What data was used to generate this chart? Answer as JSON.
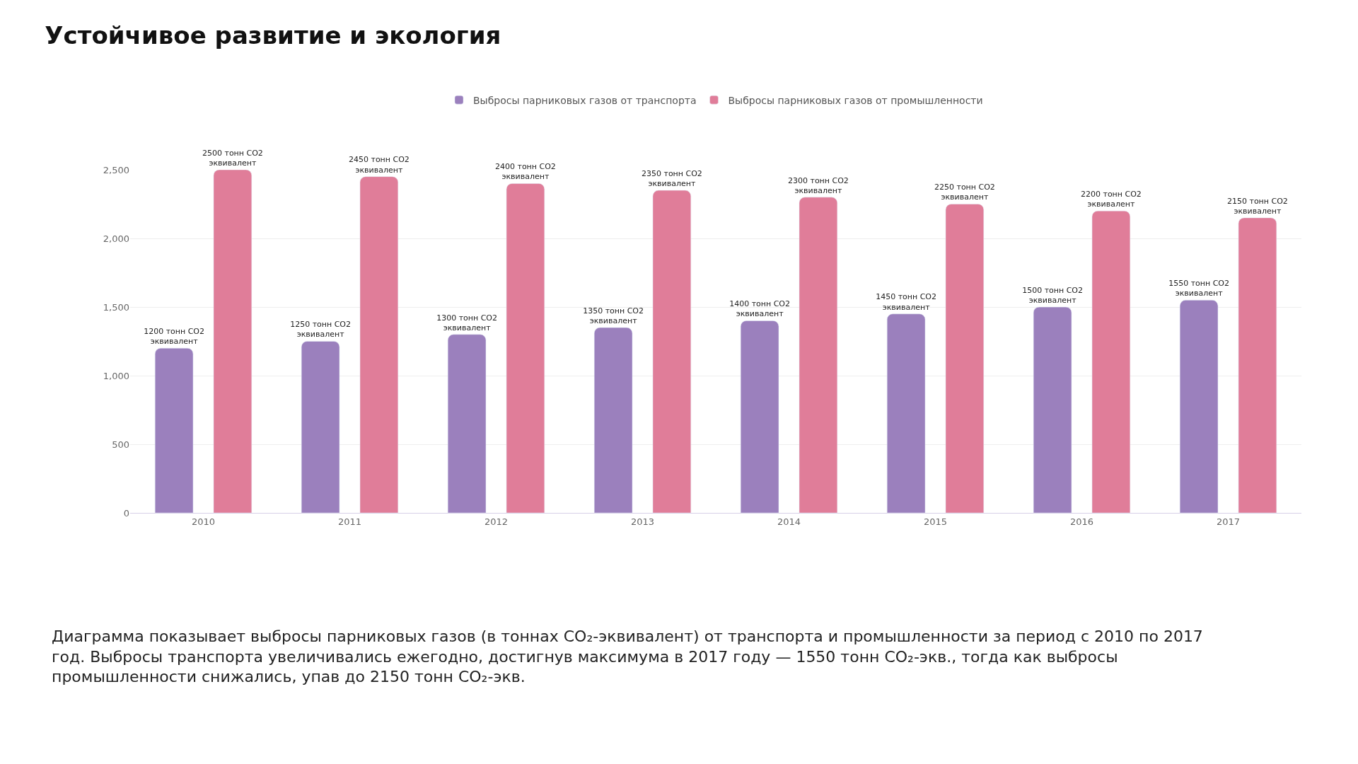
{
  "chart_data": {
    "type": "bar",
    "title": "Устойчивое развитие и экология",
    "categories": [
      "2010",
      "2011",
      "2012",
      "2013",
      "2014",
      "2015",
      "2016",
      "2017"
    ],
    "series": [
      {
        "name": "Выбросы парниковых газов от транспорта",
        "color": "#9b80bd",
        "values": [
          1200,
          1250,
          1300,
          1350,
          1400,
          1450,
          1500,
          1550
        ],
        "value_labels": [
          "1200 тонн CO2 эквивалент",
          "1250 тонн CO2 эквивалент",
          "1300 тонн CO2 эквивалент",
          "1350 тонн CO2 эквивалент",
          "1400 тонн CO2 эквивалент",
          "1450 тонн CO2 эквивалент",
          "1500 тонн CO2 эквивалент",
          "1550 тонн CO2 эквивалент"
        ]
      },
      {
        "name": "Выбросы парниковых газов от промышленности",
        "color": "#e07d99",
        "values": [
          2500,
          2450,
          2400,
          2350,
          2300,
          2250,
          2200,
          2150
        ],
        "value_labels": [
          "2500 тонн CO2 эквивалент",
          "2450 тонн CO2 эквивалент",
          "2400 тонн CO2 эквивалент",
          "2350 тонн CO2 эквивалент",
          "2300 тонн CO2 эквивалент",
          "2250 тонн CO2 эквивалент",
          "2200 тонн CO2 эквивалент",
          "2150 тонн CO2 эквивалент"
        ]
      }
    ],
    "ylim": [
      0,
      2500
    ],
    "yticks": [
      0,
      500,
      {
        "value": 1000,
        "label": "1,000"
      },
      {
        "value": 1500,
        "label": "1,500"
      },
      {
        "value": 2000,
        "label": "2,000"
      },
      {
        "value": 2500,
        "label": "2,500"
      }
    ],
    "grid": "y",
    "legend": "top",
    "annotations": [
      "Диаграмма показывает выбросы парниковых газов (в тоннах CO₂-эквивалент) от транспорта и промышленности за период с 2010 по 2017 год. Выбросы транспорта увеличивались ежегодно, достигнув максимума в 2017 году — 1550 тонн CO₂-экв., тогда как выбросы промышленности снижались, упав до 2150 тонн CO₂-экв."
    ]
  }
}
